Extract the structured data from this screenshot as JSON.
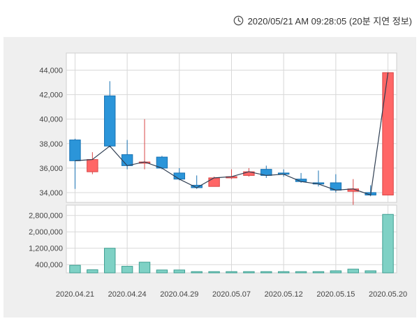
{
  "header": {
    "timestamp": "2020/05/21 AM 09:28:05 (20분 지연 정보)",
    "icon": "clock-icon"
  },
  "colors": {
    "up": "#ff6666",
    "up_border": "#d94646",
    "down": "#2b95d9",
    "down_border": "#1a73b3",
    "volume": "#7fd1c5",
    "volume_border": "#3f9f92",
    "close_line": "#2f3e52",
    "grid": "#d8d8d8",
    "panel_bg": "#efefef",
    "plot_bg": "#ffffff"
  },
  "chart_data": {
    "type": "candlestick",
    "x_tick_labels": [
      "2020.04.21",
      "2020.04.24",
      "2020.04.29",
      "2020.05.07",
      "2020.05.12",
      "2020.05.15",
      "2020.05.20"
    ],
    "price": {
      "ylim": [
        33200,
        45400
      ],
      "yticks": [
        34000,
        36000,
        38000,
        40000,
        42000,
        44000
      ],
      "ytick_labels": [
        "34,000",
        "36,000",
        "38,000",
        "40,000",
        "42,000",
        "44,000"
      ],
      "candles": [
        {
          "open": 38300,
          "high": 38400,
          "low": 34300,
          "close": 36600
        },
        {
          "open": 35700,
          "high": 37300,
          "low": 35500,
          "close": 36700
        },
        {
          "open": 41900,
          "high": 43100,
          "low": 37700,
          "close": 37800
        },
        {
          "open": 37100,
          "high": 38300,
          "low": 35900,
          "close": 36200
        },
        {
          "open": 36400,
          "high": 40000,
          "low": 35900,
          "close": 36500
        },
        {
          "open": 36900,
          "high": 37000,
          "low": 35900,
          "close": 36000
        },
        {
          "open": 35600,
          "high": 36000,
          "low": 35000,
          "close": 35100
        },
        {
          "open": 34600,
          "high": 35400,
          "low": 34300,
          "close": 34400
        },
        {
          "open": 34500,
          "high": 35300,
          "low": 34500,
          "close": 35200
        },
        {
          "open": 35200,
          "high": 35900,
          "low": 35100,
          "close": 35300
        },
        {
          "open": 35400,
          "high": 36000,
          "low": 35300,
          "close": 35700
        },
        {
          "open": 35900,
          "high": 36200,
          "low": 35200,
          "close": 35400
        },
        {
          "open": 35600,
          "high": 35900,
          "low": 35300,
          "close": 35500
        },
        {
          "open": 35100,
          "high": 35600,
          "low": 34800,
          "close": 34900
        },
        {
          "open": 34800,
          "high": 35800,
          "low": 34500,
          "close": 34700
        },
        {
          "open": 34800,
          "high": 35500,
          "low": 34000,
          "close": 34200
        },
        {
          "open": 34100,
          "high": 35100,
          "low": 32900,
          "close": 34300
        },
        {
          "open": 34000,
          "high": 34600,
          "low": 33700,
          "close": 33800
        },
        {
          "open": 33800,
          "high": 43800,
          "low": 33800,
          "close": 43800
        }
      ]
    },
    "volume": {
      "ylim": [
        0,
        3300000
      ],
      "yticks": [
        400000,
        1200000,
        2000000,
        2800000
      ],
      "ytick_labels": [
        "400,000",
        "1,200,000",
        "2,000,000",
        "2,800,000"
      ],
      "values": [
        370000,
        150000,
        1200000,
        320000,
        520000,
        140000,
        140000,
        60000,
        60000,
        60000,
        60000,
        60000,
        60000,
        60000,
        60000,
        100000,
        180000,
        100000,
        2850000
      ]
    }
  }
}
